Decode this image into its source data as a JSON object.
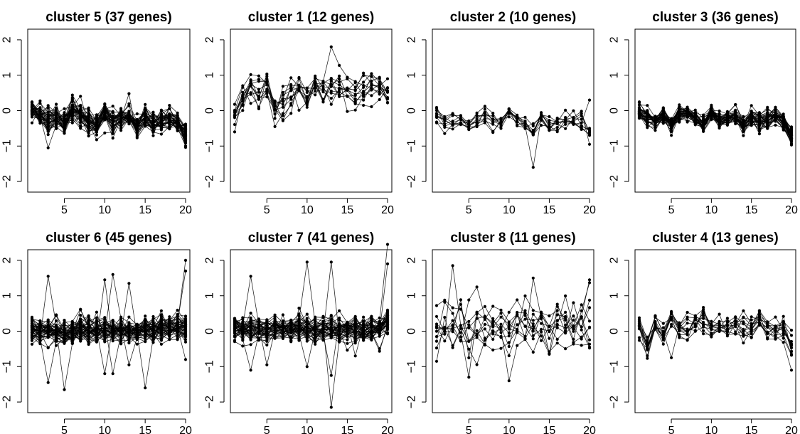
{
  "chart_data": [
    {
      "type": "line",
      "title": "cluster 5 (37 genes)",
      "n_series": 37,
      "xlim": [
        1,
        20
      ],
      "ylim": [
        -2.3,
        2.3
      ],
      "xticks": [
        5,
        10,
        15,
        20
      ],
      "yticks": [
        -2,
        -1,
        0,
        1,
        2
      ],
      "profile": [
        0.05,
        -0.15,
        -0.3,
        -0.2,
        -0.35,
        0.0,
        -0.15,
        -0.3,
        -0.45,
        -0.1,
        -0.3,
        -0.2,
        -0.15,
        -0.45,
        -0.2,
        -0.35,
        -0.3,
        -0.25,
        -0.35,
        -0.65
      ],
      "spread": 0.14,
      "outliers": [
        {
          "x": 3,
          "y": -1.05
        },
        {
          "x": 13,
          "y": 0.48
        },
        {
          "x": 20,
          "y": -1.0
        }
      ]
    },
    {
      "type": "line",
      "title": "cluster 1 (12 genes)",
      "n_series": 12,
      "xlim": [
        1,
        20
      ],
      "ylim": [
        -2.3,
        2.3
      ],
      "xticks": [
        5,
        10,
        15,
        20
      ],
      "yticks": [
        -2,
        -1,
        0,
        1,
        2
      ],
      "profile": [
        -0.1,
        0.3,
        0.6,
        0.55,
        0.75,
        0.05,
        0.1,
        0.55,
        0.65,
        0.3,
        0.7,
        0.55,
        0.65,
        0.65,
        0.6,
        0.45,
        0.5,
        0.7,
        0.6,
        0.4
      ],
      "spread": 0.2,
      "outliers": [
        {
          "x": 13,
          "y": 1.8
        },
        {
          "x": 6,
          "y": -0.45
        },
        {
          "x": 1,
          "y": -0.6
        },
        {
          "x": 20,
          "y": 0.9
        }
      ]
    },
    {
      "type": "line",
      "title": "cluster 2 (10 genes)",
      "n_series": 10,
      "xlim": [
        1,
        20
      ],
      "ylim": [
        -2.3,
        2.3
      ],
      "xticks": [
        5,
        10,
        15,
        20
      ],
      "yticks": [
        -2,
        -1,
        0,
        1,
        2
      ],
      "profile": [
        -0.05,
        -0.25,
        -0.35,
        -0.25,
        -0.4,
        -0.25,
        -0.15,
        -0.3,
        -0.35,
        -0.05,
        -0.25,
        -0.35,
        -0.55,
        -0.25,
        -0.35,
        -0.3,
        -0.25,
        -0.2,
        -0.3,
        -0.6
      ],
      "spread": 0.13,
      "outliers": [
        {
          "x": 13,
          "y": -1.6
        },
        {
          "x": 20,
          "y": 0.3
        },
        {
          "x": 20,
          "y": -0.95
        }
      ]
    },
    {
      "type": "line",
      "title": "cluster 3 (36 genes)",
      "n_series": 36,
      "xlim": [
        1,
        20
      ],
      "ylim": [
        -2.3,
        2.3
      ],
      "xticks": [
        5,
        10,
        15,
        20
      ],
      "yticks": [
        -2,
        -1,
        0,
        1,
        2
      ],
      "profile": [
        -0.05,
        -0.2,
        -0.3,
        -0.15,
        -0.4,
        -0.1,
        -0.05,
        -0.2,
        -0.4,
        -0.05,
        -0.3,
        -0.2,
        -0.15,
        -0.4,
        -0.2,
        -0.3,
        -0.25,
        -0.15,
        -0.3,
        -0.7
      ],
      "spread": 0.1,
      "outliers": [
        {
          "x": 20,
          "y": -0.95
        }
      ]
    },
    {
      "type": "line",
      "title": "cluster 6 (45 genes)",
      "n_series": 45,
      "xlim": [
        1,
        20
      ],
      "ylim": [
        -2.3,
        2.3
      ],
      "xticks": [
        5,
        10,
        15,
        20
      ],
      "yticks": [
        -2,
        -1,
        0,
        1,
        2
      ],
      "profile": [
        0.05,
        0.0,
        0.05,
        0.0,
        -0.1,
        0.0,
        0.05,
        0.0,
        0.05,
        0.05,
        0.0,
        0.05,
        0.05,
        0.0,
        0.05,
        0.0,
        0.05,
        0.05,
        0.1,
        0.15
      ],
      "spread": 0.15,
      "outliers": [
        {
          "x": 3,
          "y": 1.55
        },
        {
          "x": 3,
          "y": -1.45
        },
        {
          "x": 5,
          "y": -1.65
        },
        {
          "x": 10,
          "y": 1.45
        },
        {
          "x": 10,
          "y": -1.2
        },
        {
          "x": 11,
          "y": 1.6
        },
        {
          "x": 11,
          "y": -1.2
        },
        {
          "x": 13,
          "y": 1.35
        },
        {
          "x": 13,
          "y": -0.95
        },
        {
          "x": 15,
          "y": -1.6
        },
        {
          "x": 20,
          "y": 2.0
        },
        {
          "x": 20,
          "y": 1.7
        },
        {
          "x": 20,
          "y": -0.8
        }
      ]
    },
    {
      "type": "line",
      "title": "cluster 7 (41 genes)",
      "n_series": 41,
      "xlim": [
        1,
        20
      ],
      "ylim": [
        -2.3,
        2.3
      ],
      "xticks": [
        5,
        10,
        15,
        20
      ],
      "yticks": [
        -2,
        -1,
        0,
        1,
        2
      ],
      "profile": [
        0.1,
        0.05,
        0.1,
        0.05,
        0.0,
        0.05,
        0.1,
        0.05,
        0.1,
        0.1,
        0.05,
        0.05,
        0.1,
        0.05,
        0.05,
        0.05,
        0.05,
        0.1,
        0.1,
        0.3
      ],
      "spread": 0.15,
      "outliers": [
        {
          "x": 3,
          "y": 1.55
        },
        {
          "x": 3,
          "y": -1.1
        },
        {
          "x": 5,
          "y": -0.95
        },
        {
          "x": 10,
          "y": 1.95
        },
        {
          "x": 10,
          "y": -1.0
        },
        {
          "x": 13,
          "y": 1.95
        },
        {
          "x": 13,
          "y": -2.15
        },
        {
          "x": 13,
          "y": -1.25
        },
        {
          "x": 16,
          "y": -0.7
        },
        {
          "x": 20,
          "y": 2.45
        },
        {
          "x": 20,
          "y": 1.9
        }
      ]
    },
    {
      "type": "line",
      "title": "cluster 8 (11 genes)",
      "n_series": 11,
      "xlim": [
        1,
        20
      ],
      "ylim": [
        -2.3,
        2.3
      ],
      "xticks": [
        5,
        10,
        15,
        20
      ],
      "yticks": [
        -2,
        -1,
        0,
        1,
        2
      ],
      "profile": [
        0.0,
        0.1,
        0.2,
        0.1,
        0.05,
        0.1,
        0.2,
        0.1,
        0.05,
        -0.2,
        0.1,
        0.2,
        0.15,
        0.2,
        0.1,
        0.15,
        0.2,
        0.15,
        0.1,
        0.3
      ],
      "spread": 0.3,
      "outliers": [
        {
          "x": 3,
          "y": 1.85
        },
        {
          "x": 5,
          "y": -1.3
        },
        {
          "x": 1,
          "y": -0.85
        },
        {
          "x": 10,
          "y": -1.4
        },
        {
          "x": 13,
          "y": 1.5
        },
        {
          "x": 20,
          "y": 1.45
        },
        {
          "x": 20,
          "y": -0.45
        }
      ]
    },
    {
      "type": "line",
      "title": "cluster 4 (13 genes)",
      "n_series": 13,
      "xlim": [
        1,
        20
      ],
      "ylim": [
        -2.3,
        2.3
      ],
      "xticks": [
        5,
        10,
        15,
        20
      ],
      "yticks": [
        -2,
        -1,
        0,
        1,
        2
      ],
      "profile": [
        0.05,
        -0.45,
        0.2,
        -0.1,
        0.3,
        -0.05,
        0.1,
        0.2,
        0.35,
        0.05,
        0.1,
        0.05,
        0.2,
        0.1,
        0.1,
        0.3,
        0.05,
        -0.05,
        0.05,
        -0.5
      ],
      "spread": 0.15,
      "outliers": [
        {
          "x": 20,
          "y": -1.1
        },
        {
          "x": 5,
          "y": -0.75
        },
        {
          "x": 18,
          "y": 0.4
        }
      ]
    }
  ]
}
